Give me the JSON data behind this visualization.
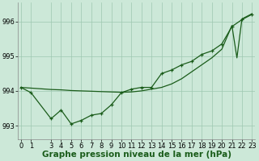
{
  "xlabel": "Graphe pression niveau de la mer (hPa)",
  "hours": [
    0,
    1,
    3,
    4,
    5,
    6,
    7,
    8,
    9,
    10,
    11,
    12,
    13,
    14,
    15,
    16,
    17,
    18,
    19,
    20,
    21,
    22,
    23
  ],
  "pressure": [
    994.1,
    993.95,
    993.2,
    993.45,
    993.05,
    993.15,
    993.3,
    993.35,
    993.6,
    993.95,
    994.05,
    994.1,
    994.1,
    994.5,
    994.6,
    994.75,
    994.85,
    995.05,
    995.15,
    995.35,
    995.85,
    996.05,
    996.2
  ],
  "straight_x": [
    0,
    1,
    3,
    4,
    5,
    6,
    7,
    8,
    9,
    10,
    11,
    12,
    13,
    14,
    15,
    16,
    17,
    18,
    19,
    20,
    21,
    21.5,
    22,
    23
  ],
  "straight_y": [
    994.1,
    994.08,
    994.04,
    994.03,
    994.01,
    994.0,
    993.99,
    993.98,
    993.97,
    993.96,
    993.97,
    994.0,
    994.05,
    994.1,
    994.2,
    994.35,
    994.55,
    994.75,
    994.95,
    995.2,
    995.88,
    994.95,
    996.07,
    996.22
  ],
  "line_color": "#1a5c1a",
  "bg_color": "#cce8d8",
  "grid_color": "#9dc8b0",
  "ylim": [
    992.6,
    996.55
  ],
  "yticks": [
    993,
    994,
    995,
    996
  ],
  "xticks": [
    0,
    1,
    3,
    4,
    5,
    6,
    7,
    8,
    9,
    10,
    11,
    12,
    13,
    14,
    15,
    16,
    17,
    18,
    19,
    20,
    21,
    22,
    23
  ],
  "xlabel_fontsize": 7.5,
  "tick_fontsize": 6.0,
  "linewidth": 0.9,
  "markersize": 3.0
}
